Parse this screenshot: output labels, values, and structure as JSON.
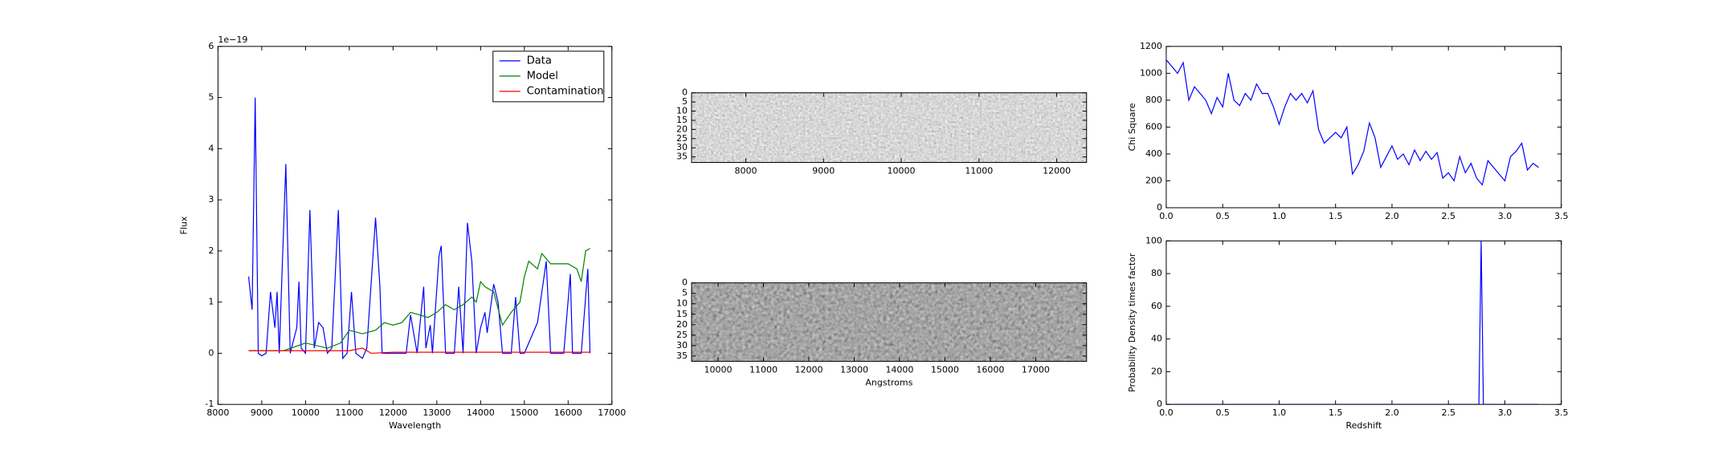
{
  "chart_data": [
    {
      "type": "line",
      "xlabel": "Wavelength",
      "ylabel": "Flux",
      "y_offset_label": "1e−19",
      "xlim": [
        8000,
        17000
      ],
      "ylim": [
        -1,
        6
      ],
      "xticks": [
        8000,
        9000,
        10000,
        11000,
        12000,
        13000,
        14000,
        15000,
        16000,
        17000
      ],
      "yticks": [
        -1,
        0,
        1,
        2,
        3,
        4,
        5,
        6
      ],
      "legend": "upper right",
      "series": [
        {
          "name": "Data",
          "color": "#0000ff",
          "x": [
            8700,
            8780,
            8850,
            8920,
            9000,
            9100,
            9200,
            9300,
            9350,
            9400,
            9550,
            9650,
            9800,
            9850,
            9900,
            10000,
            10100,
            10200,
            10300,
            10400,
            10500,
            10600,
            10750,
            10850,
            10950,
            11050,
            11150,
            11300,
            11400,
            11600,
            11700,
            11750,
            12000,
            12300,
            12400,
            12550,
            12700,
            12750,
            12850,
            12900,
            13050,
            13100,
            13200,
            13400,
            13500,
            13600,
            13700,
            13800,
            13900,
            14000,
            14100,
            14150,
            14300,
            14400,
            14500,
            14700,
            14800,
            14900,
            15000,
            15300,
            15500,
            15600,
            15900,
            16050,
            16100,
            16300,
            16450,
            16500
          ],
          "values": [
            1.5,
            0.85,
            5.0,
            0,
            -0.05,
            0,
            1.2,
            0.5,
            1.2,
            0,
            3.7,
            0,
            0.5,
            1.4,
            0.1,
            0,
            2.8,
            0.1,
            0.6,
            0.5,
            0,
            0.1,
            2.8,
            -0.1,
            0,
            1.2,
            0,
            -0.1,
            0.1,
            2.65,
            1.3,
            0,
            0,
            0,
            0.75,
            0,
            1.3,
            0.1,
            0.55,
            0,
            1.9,
            2.1,
            0,
            0,
            1.3,
            0,
            2.55,
            1.8,
            0,
            0.5,
            0.8,
            0.4,
            1.35,
            1.0,
            0,
            0,
            1.1,
            0,
            0,
            0.6,
            1.8,
            0,
            0,
            1.55,
            0,
            0,
            1.65,
            0
          ]
        },
        {
          "name": "Model",
          "color": "#008000",
          "x": [
            8700,
            9000,
            9500,
            10000,
            10500,
            10800,
            11000,
            11300,
            11600,
            11800,
            12000,
            12200,
            12400,
            12600,
            12800,
            13000,
            13200,
            13400,
            13600,
            13800,
            13900,
            14000,
            14100,
            14300,
            14500,
            14700,
            14900,
            15000,
            15100,
            15300,
            15400,
            15600,
            15800,
            16000,
            16200,
            16300,
            16400,
            16500
          ],
          "values": [
            0.05,
            0.05,
            0.05,
            0.2,
            0.1,
            0.2,
            0.45,
            0.38,
            0.45,
            0.6,
            0.55,
            0.6,
            0.8,
            0.75,
            0.7,
            0.8,
            0.95,
            0.85,
            0.95,
            1.1,
            1.0,
            1.4,
            1.3,
            1.2,
            0.55,
            0.8,
            1.0,
            1.5,
            1.8,
            1.65,
            1.95,
            1.75,
            1.75,
            1.75,
            1.65,
            1.4,
            2.0,
            2.05
          ]
        },
        {
          "name": "Contamination",
          "color": "#ff0000",
          "x": [
            8700,
            9500,
            10000,
            10500,
            11000,
            11300,
            11500,
            12000,
            13000,
            14000,
            15000,
            16000,
            16500
          ],
          "values": [
            0.05,
            0.05,
            0.05,
            0.05,
            0.05,
            0.1,
            0,
            0.02,
            0.02,
            0.02,
            0.02,
            0.02,
            0.02
          ]
        }
      ]
    },
    {
      "type": "image",
      "xlim": [
        7302,
        12384
      ],
      "ylim": [
        38,
        0
      ],
      "xticks": [
        8000,
        9000,
        10000,
        11000,
        12000
      ],
      "yticks": [
        0,
        5,
        10,
        15,
        20,
        25,
        30,
        35
      ]
    },
    {
      "type": "image",
      "xlabel": "Angstroms",
      "xlim": [
        9415,
        18122
      ],
      "ylim": [
        37.5,
        0
      ],
      "xticks": [
        10000,
        11000,
        12000,
        13000,
        14000,
        15000,
        16000,
        17000
      ],
      "yticks": [
        0,
        5,
        10,
        15,
        20,
        25,
        30,
        35
      ]
    },
    {
      "type": "line",
      "ylabel": "Chi Square",
      "xlim": [
        0,
        3.5
      ],
      "ylim": [
        0,
        1200
      ],
      "xticks": [
        {
          "value": 0,
          "label": "0.0"
        },
        0.5,
        {
          "value": 1,
          "label": "1.0"
        },
        1.5,
        {
          "value": 2,
          "label": "2.0"
        },
        2.5,
        {
          "value": 3,
          "label": "3.0"
        },
        3.5
      ],
      "yticks": [
        0,
        200,
        400,
        600,
        800,
        1000,
        1200
      ],
      "series": [
        {
          "color": "#0000ff",
          "x": [
            0,
            0.05,
            0.1,
            0.15,
            0.2,
            0.25,
            0.3,
            0.35,
            0.4,
            0.45,
            0.5,
            0.55,
            0.6,
            0.65,
            0.7,
            0.75,
            0.8,
            0.85,
            0.9,
            0.95,
            1.0,
            1.05,
            1.1,
            1.15,
            1.2,
            1.25,
            1.3,
            1.35,
            1.4,
            1.45,
            1.5,
            1.55,
            1.6,
            1.65,
            1.7,
            1.75,
            1.8,
            1.85,
            1.9,
            1.95,
            2.0,
            2.05,
            2.1,
            2.15,
            2.2,
            2.25,
            2.3,
            2.35,
            2.4,
            2.45,
            2.5,
            2.55,
            2.6,
            2.65,
            2.7,
            2.75,
            2.8,
            2.85,
            2.9,
            2.95,
            3.0,
            3.05,
            3.1,
            3.15,
            3.2,
            3.25,
            3.3
          ],
          "values": [
            1100,
            1050,
            1000,
            1080,
            800,
            900,
            850,
            800,
            700,
            820,
            750,
            1000,
            800,
            760,
            850,
            800,
            920,
            850,
            850,
            750,
            620,
            750,
            850,
            800,
            850,
            780,
            870,
            580,
            480,
            520,
            560,
            520,
            600,
            250,
            320,
            420,
            630,
            520,
            300,
            380,
            460,
            360,
            400,
            320,
            430,
            350,
            420,
            360,
            410,
            220,
            260,
            200,
            380,
            260,
            330,
            220,
            170,
            350,
            300,
            250,
            200,
            380,
            420,
            480,
            280,
            330,
            300
          ]
        }
      ]
    },
    {
      "type": "line",
      "xlabel": "Redshift",
      "ylabel": "Probability Density times factor",
      "xlim": [
        0,
        3.5
      ],
      "ylim": [
        0,
        100
      ],
      "xticks": [
        {
          "value": 0,
          "label": "0.0"
        },
        0.5,
        {
          "value": 1,
          "label": "1.0"
        },
        1.5,
        {
          "value": 2,
          "label": "2.0"
        },
        2.5,
        {
          "value": 3,
          "label": "3.0"
        },
        3.5
      ],
      "yticks": [
        0,
        20,
        40,
        60,
        80,
        100
      ],
      "series": [
        {
          "color": "#0000ff",
          "x": [
            0,
            2.77,
            2.79,
            2.81,
            3.3
          ],
          "values": [
            0,
            0,
            100,
            0,
            0
          ]
        }
      ]
    }
  ]
}
